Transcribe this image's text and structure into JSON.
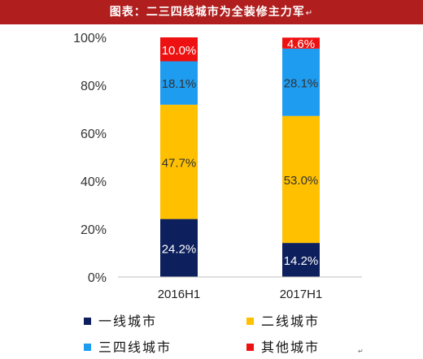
{
  "title": "图表：二三四线城市为全装修主力军",
  "title_mark": "↵",
  "chart_data": {
    "type": "bar",
    "stacked": true,
    "categories": [
      "2016H1",
      "2017H1"
    ],
    "series": [
      {
        "name": "一线城市",
        "color": "#0d1f5c",
        "values": [
          24.2,
          14.2
        ],
        "labels": [
          "24.2%",
          "14.2%"
        ],
        "label_color": "#ffffff"
      },
      {
        "name": "二线城市",
        "color": "#ffc000",
        "values": [
          47.7,
          53.0
        ],
        "labels": [
          "47.7%",
          "53.0%"
        ],
        "label_color": "#333333"
      },
      {
        "name": "三四线城市",
        "color": "#1e9cf0",
        "values": [
          18.1,
          28.1
        ],
        "labels": [
          "18.1%",
          "28.1%"
        ],
        "label_color": "#333333"
      },
      {
        "name": "其他城市",
        "color": "#ee1111",
        "values": [
          10.0,
          4.6
        ],
        "labels": [
          "10.0%",
          "4.6%"
        ],
        "label_color": "#ffffff"
      }
    ],
    "yticks": [
      "0%",
      "20%",
      "40%",
      "60%",
      "80%",
      "100%"
    ],
    "ylim": [
      0,
      100
    ],
    "grid": false,
    "legend": "bottom"
  },
  "legend_labels": [
    "一线城市",
    "二线城市",
    "三四线城市",
    "其他城市"
  ],
  "footer_mark": "↵"
}
